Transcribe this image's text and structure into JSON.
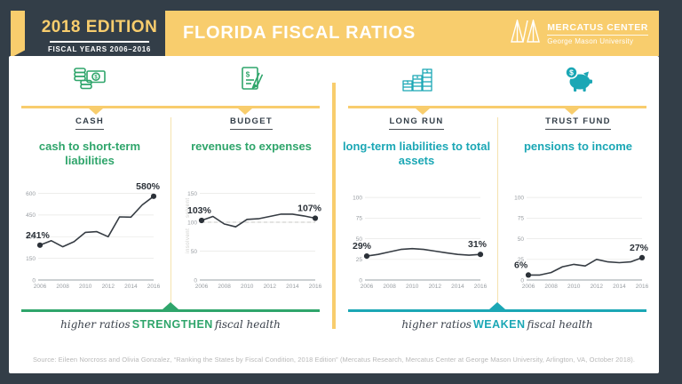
{
  "header": {
    "edition_badge": {
      "title": "2018 EDITION",
      "subtitle": "FISCAL YEARS 2006–2016"
    },
    "title": "FLORIDA FISCAL RATIOS",
    "logo": {
      "name": "MERCATUS CENTER",
      "subname": "George Mason University"
    }
  },
  "colors": {
    "navy": "#333E48",
    "yellow": "#F8CD6D",
    "pale_yellow": "#F5E2AE",
    "green": "#2FA56B",
    "teal": "#1BA7B5",
    "ink": "#2B3138"
  },
  "panels": [
    {
      "icon": "cash-coins-icon",
      "category": "CASH",
      "title": "cash to short-term liabilities",
      "accent": "green"
    },
    {
      "icon": "budget-document-icon",
      "category": "BUDGET",
      "title": "revenues to expenses",
      "accent": "green"
    },
    {
      "icon": "coin-stacks-icon",
      "category": "LONG RUN",
      "title": "long-term liabilities to total assets",
      "accent": "teal"
    },
    {
      "icon": "piggy-bank-icon",
      "category": "TRUST FUND",
      "title": "pensions to income",
      "accent": "teal"
    }
  ],
  "chart_data": [
    {
      "type": "line",
      "panel": "CASH",
      "title": "cash to short-term liabilities",
      "x": [
        2006,
        2007,
        2008,
        2009,
        2010,
        2011,
        2012,
        2013,
        2014,
        2015,
        2016
      ],
      "values": [
        241,
        272,
        230,
        265,
        330,
        335,
        300,
        437,
        435,
        520,
        580
      ],
      "x_tick_labels": [
        "2006",
        "2008",
        "2010",
        "2012",
        "2014",
        "2016"
      ],
      "y_ticks": [
        0,
        150,
        300,
        450,
        600
      ],
      "ylim": [
        0,
        640
      ],
      "start_label": "241%",
      "end_label": "580%",
      "grid": true,
      "unit": "percent"
    },
    {
      "type": "line",
      "panel": "BUDGET",
      "title": "revenues to expenses",
      "x": [
        2006,
        2007,
        2008,
        2009,
        2010,
        2011,
        2012,
        2013,
        2014,
        2015,
        2016
      ],
      "values": [
        103,
        110,
        97,
        92,
        105,
        106,
        110,
        114,
        114,
        111,
        107
      ],
      "x_tick_labels": [
        "2006",
        "2008",
        "2010",
        "2012",
        "2014",
        "2016"
      ],
      "y_ticks": [
        0,
        50,
        100,
        150
      ],
      "ylim": [
        0,
        160
      ],
      "dashed_at": 100,
      "side_labels": [
        "solvent",
        "insolvent"
      ],
      "start_label": "103%",
      "end_label": "107%",
      "grid": true,
      "unit": "percent"
    },
    {
      "type": "line",
      "panel": "LONG RUN",
      "title": "long-term liabilities to total assets",
      "x": [
        2006,
        2007,
        2008,
        2009,
        2010,
        2011,
        2012,
        2013,
        2014,
        2015,
        2016
      ],
      "values": [
        29,
        31,
        34,
        37,
        38,
        37,
        35,
        33,
        31,
        30,
        31
      ],
      "x_tick_labels": [
        "2006",
        "2008",
        "2010",
        "2012",
        "2014",
        "2016"
      ],
      "y_ticks": [
        0,
        25,
        50,
        75,
        100
      ],
      "ylim": [
        0,
        112
      ],
      "start_label": "29%",
      "end_label": "31%",
      "grid": true,
      "unit": "percent"
    },
    {
      "type": "line",
      "panel": "TRUST FUND",
      "title": "pensions to income",
      "x": [
        2006,
        2007,
        2008,
        2009,
        2010,
        2011,
        2012,
        2013,
        2014,
        2015,
        2016
      ],
      "values": [
        6,
        6,
        9,
        16,
        19,
        17,
        25,
        22,
        21,
        22,
        27
      ],
      "x_tick_labels": [
        "2006",
        "2008",
        "2010",
        "2012",
        "2014",
        "2016"
      ],
      "y_ticks": [
        0,
        25,
        50,
        75,
        100
      ],
      "ylim": [
        0,
        112
      ],
      "start_label": "6%",
      "end_label": "27%",
      "grid": true,
      "unit": "percent"
    }
  ],
  "taglines": {
    "left": {
      "prefix": "higher ratios",
      "emphasis": "STRENGTHEN",
      "suffix": "fiscal health"
    },
    "right": {
      "prefix": "higher ratios",
      "emphasis": "WEAKEN",
      "suffix": "fiscal health"
    }
  },
  "source": "Source: Eileen Norcross and Olivia Gonzalez, “Ranking the States by Fiscal Condition, 2018 Edition” (Mercatus Research, Mercatus Center at George Mason University, Arlington, VA, October 2018)."
}
